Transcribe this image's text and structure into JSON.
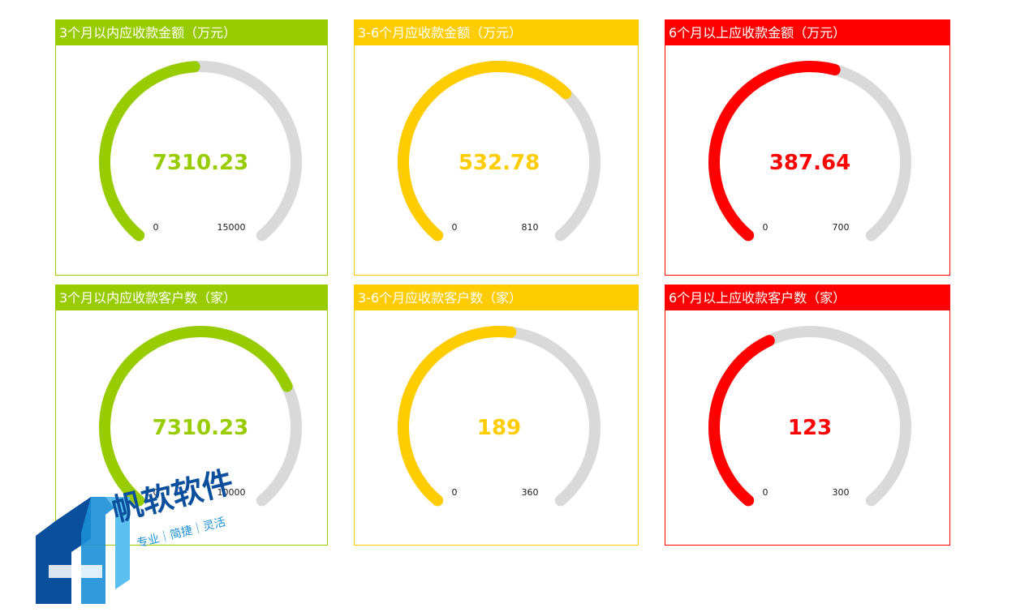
{
  "panels": [
    {
      "title": "3个月以内应收款金额（万元）",
      "color": "#99cc00"
    },
    {
      "title": "3-6个月应收款金额（万元）",
      "color": "#ffcc00"
    },
    {
      "title": "6个月以上应收款金额（万元）",
      "color": "#ff0000"
    },
    {
      "title": "3个月以内应收款客户数（家）",
      "color": "#99cc00"
    },
    {
      "title": "3-6个月应收款客户数（家）",
      "color": "#ffcc00"
    },
    {
      "title": "6个月以上应收款客户数（家）",
      "color": "#ff0000"
    }
  ],
  "chart_data": [
    {
      "type": "gauge",
      "title": "3个月以内应收款金额（万元）",
      "min": 0,
      "max": 15000,
      "value": 7310.23,
      "value_label": "7310.23",
      "min_label": "0",
      "max_label": "15000",
      "color": "#99cc00",
      "track_color": "#d9d9d9"
    },
    {
      "type": "gauge",
      "title": "3-6个月应收款金额（万元）",
      "min": 0,
      "max": 810,
      "value": 532.78,
      "value_label": "532.78",
      "min_label": "0",
      "max_label": "810",
      "color": "#ffcc00",
      "track_color": "#d9d9d9"
    },
    {
      "type": "gauge",
      "title": "6个月以上应收款金额（万元）",
      "min": 0,
      "max": 700,
      "value": 387.64,
      "value_label": "387.64",
      "min_label": "0",
      "max_label": "700",
      "color": "#ff0000",
      "track_color": "#d9d9d9"
    },
    {
      "type": "gauge",
      "title": "3个月以内应收款客户数（家）",
      "min": 0,
      "max": 10000,
      "value": 7310.23,
      "value_label": "7310.23",
      "min_label": "0",
      "max_label": "10000",
      "color": "#99cc00",
      "track_color": "#d9d9d9"
    },
    {
      "type": "gauge",
      "title": "3-6个月应收款客户数（家）",
      "min": 0,
      "max": 360,
      "value": 189,
      "value_label": "189",
      "min_label": "0",
      "max_label": "360",
      "color": "#ffcc00",
      "track_color": "#d9d9d9"
    },
    {
      "type": "gauge",
      "title": "6个月以上应收款客户数（家）",
      "min": 0,
      "max": 300,
      "value": 123,
      "value_label": "123",
      "min_label": "0",
      "max_label": "300",
      "color": "#ff0000",
      "track_color": "#d9d9d9"
    }
  ],
  "watermark": {
    "brand": "帆软软件",
    "tagline": "专业｜简捷｜灵活",
    "colors": [
      "#0a4f9c",
      "#1a8fd6",
      "#5bc0f0"
    ]
  }
}
